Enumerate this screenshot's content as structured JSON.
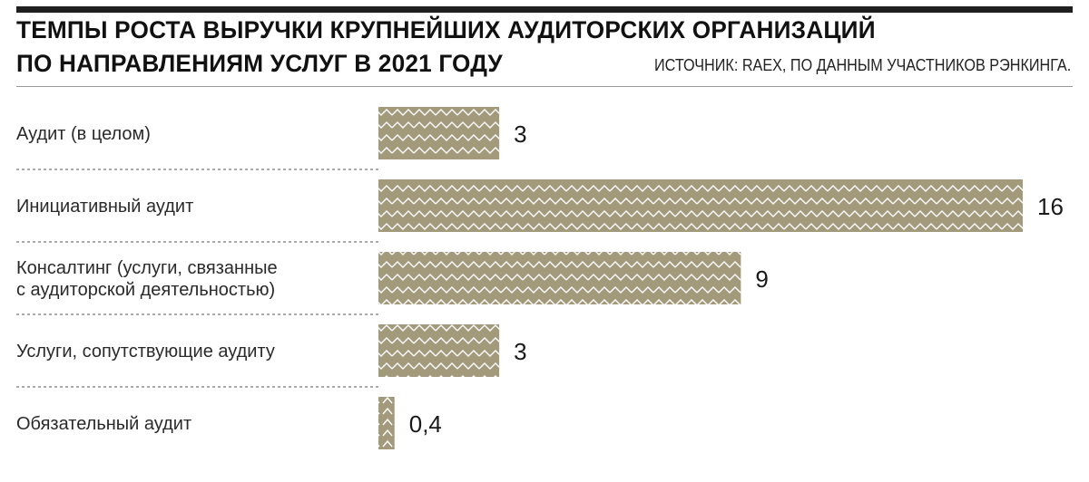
{
  "header": {
    "title_line1": "ТЕМПЫ РОСТА ВЫРУЧКИ КРУПНЕЙШИХ АУДИТОРСКИХ ОРГАНИЗАЦИЙ",
    "title_line2": "ПО НАПРАВЛЕНИЯМ УСЛУГ В 2021 ГОДУ",
    "source": "ИСТОЧНИК: RAEX, ПО ДАННЫМ УЧАСТНИКОВ РЭНКИНГА."
  },
  "chart_data": {
    "type": "bar",
    "orientation": "horizontal",
    "title": "ТЕМПЫ РОСТА ВЫРУЧКИ КРУПНЕЙШИХ АУДИТОРСКИХ ОРГАНИЗАЦИЙ ПО НАПРАВЛЕНИЯМ УСЛУГ В 2021 ГОДУ",
    "categories": [
      [
        "Аудит (в целом)"
      ],
      [
        "Инициативный аудит"
      ],
      [
        "Консалтинг (услуги, связанные",
        "с аудиторской деятельностью)"
      ],
      [
        "Услуги, сопутствующие аудиту"
      ],
      [
        "Обязательный аудит"
      ]
    ],
    "values": [
      3,
      16,
      9,
      3,
      0.4
    ],
    "value_labels": [
      "3",
      "16",
      "9",
      "3",
      "0,4"
    ],
    "xlim": [
      0,
      16
    ],
    "grid": false,
    "bar_color": "#a39a7c",
    "pattern_color": "#ffffff"
  }
}
